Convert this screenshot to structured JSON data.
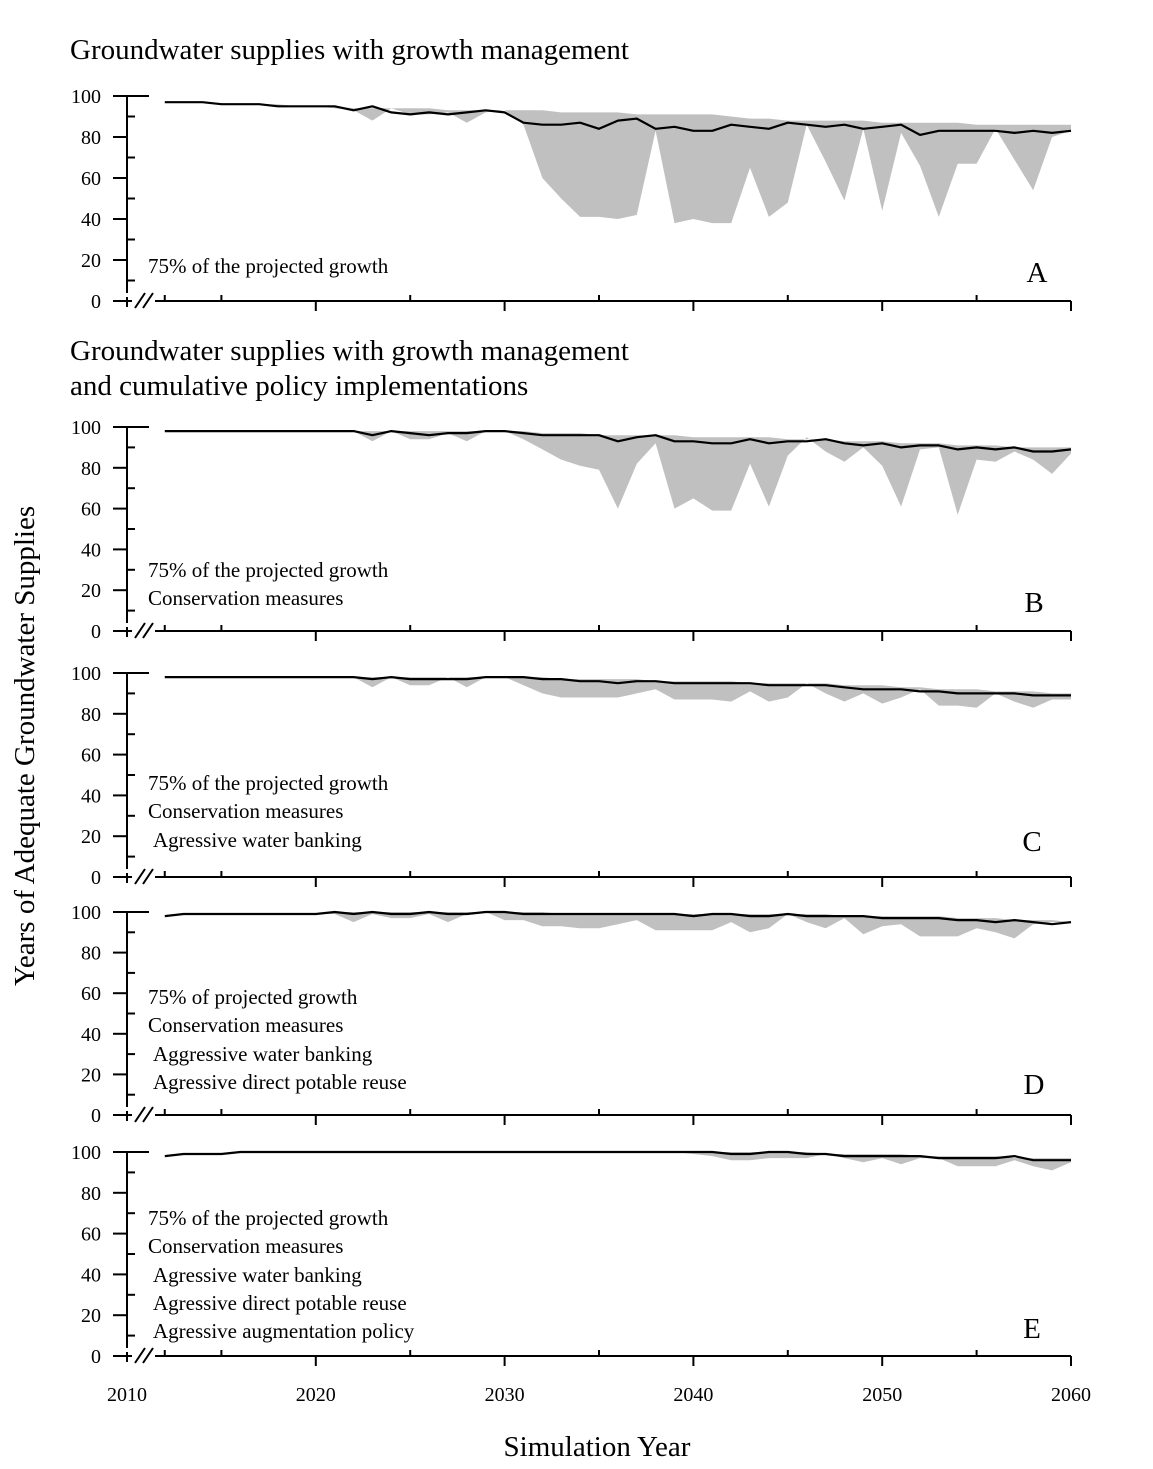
{
  "figure": {
    "ylabel": "Years of Adequate Groundwater Supplies",
    "xlabel": "Simulation Year",
    "x_ticks": [
      "2010",
      "2020",
      "2030",
      "2040",
      "2050",
      "2060"
    ],
    "y_ticks": [
      "0",
      "20",
      "40",
      "60",
      "80",
      "100"
    ]
  },
  "colors": {
    "range_fill": "#c0c0c0",
    "line": "#000000"
  },
  "chart_data": [
    {
      "panel": "A",
      "type": "area",
      "title": [
        "Groundwater supplies with growth management"
      ],
      "notes": [
        "75% of the projected growth"
      ],
      "xlim": [
        2010,
        2060
      ],
      "ylim": [
        0,
        100
      ],
      "x": [
        2012,
        2013,
        2014,
        2015,
        2016,
        2017,
        2018,
        2019,
        2020,
        2021,
        2022,
        2023,
        2024,
        2025,
        2026,
        2027,
        2028,
        2029,
        2030,
        2031,
        2032,
        2033,
        2034,
        2035,
        2036,
        2037,
        2038,
        2039,
        2040,
        2041,
        2042,
        2043,
        2044,
        2045,
        2046,
        2047,
        2048,
        2049,
        2050,
        2051,
        2052,
        2053,
        2054,
        2055,
        2056,
        2057,
        2058,
        2059,
        2060
      ],
      "series": [
        {
          "name": "upper",
          "values": [
            97,
            97,
            97,
            96,
            96,
            96,
            96,
            95,
            95,
            95,
            94,
            94,
            94,
            94,
            94,
            93,
            93,
            93,
            93,
            93,
            93,
            92,
            92,
            92,
            92,
            91,
            91,
            91,
            91,
            91,
            90,
            89,
            89,
            88,
            88,
            88,
            88,
            88,
            87,
            87,
            87,
            87,
            87,
            86,
            86,
            86,
            86,
            86,
            86
          ]
        },
        {
          "name": "lower",
          "values": [
            97,
            97,
            97,
            96,
            96,
            96,
            95,
            95,
            95,
            94,
            93,
            88,
            94,
            91,
            91,
            92,
            87,
            92,
            93,
            86,
            60,
            50,
            41,
            41,
            40,
            42,
            83,
            38,
            40,
            38,
            38,
            65,
            41,
            48,
            86,
            68,
            49,
            84,
            44,
            82,
            66,
            41,
            67,
            67,
            84,
            69,
            54,
            80,
            83
          ]
        },
        {
          "name": "mean",
          "values": [
            97,
            97,
            97,
            96,
            96,
            96,
            95,
            95,
            95,
            95,
            93,
            95,
            92,
            91,
            92,
            91,
            92,
            93,
            92,
            87,
            86,
            86,
            87,
            84,
            88,
            89,
            84,
            85,
            83,
            83,
            86,
            85,
            84,
            87,
            86,
            85,
            86,
            84,
            85,
            86,
            81,
            83,
            83,
            83,
            83,
            82,
            83,
            82,
            83
          ]
        }
      ]
    },
    {
      "panel": "B",
      "type": "area",
      "title": [
        "Groundwater supplies with growth management",
        "and cumulative policy implementations"
      ],
      "notes": [
        "75% of the projected growth",
        "Conservation measures"
      ],
      "xlim": [
        2010,
        2060
      ],
      "ylim": [
        0,
        100
      ],
      "x": [
        2012,
        2013,
        2014,
        2015,
        2016,
        2017,
        2018,
        2019,
        2020,
        2021,
        2022,
        2023,
        2024,
        2025,
        2026,
        2027,
        2028,
        2029,
        2030,
        2031,
        2032,
        2033,
        2034,
        2035,
        2036,
        2037,
        2038,
        2039,
        2040,
        2041,
        2042,
        2043,
        2044,
        2045,
        2046,
        2047,
        2048,
        2049,
        2050,
        2051,
        2052,
        2053,
        2054,
        2055,
        2056,
        2057,
        2058,
        2059,
        2060
      ],
      "series": [
        {
          "name": "upper",
          "values": [
            98,
            98,
            98,
            98,
            98,
            98,
            98,
            98,
            98,
            98,
            98,
            98,
            98,
            98,
            98,
            98,
            98,
            98,
            98,
            98,
            97,
            97,
            97,
            96,
            96,
            96,
            96,
            96,
            95,
            95,
            95,
            95,
            95,
            94,
            94,
            94,
            93,
            93,
            93,
            92,
            92,
            92,
            91,
            91,
            91,
            90,
            90,
            90,
            90
          ]
        },
        {
          "name": "lower",
          "values": [
            98,
            98,
            98,
            98,
            98,
            98,
            98,
            98,
            98,
            98,
            98,
            93,
            98,
            94,
            94,
            97,
            93,
            98,
            98,
            94,
            89,
            84,
            81,
            79,
            60,
            82,
            92,
            60,
            65,
            59,
            59,
            82,
            61,
            86,
            95,
            88,
            83,
            90,
            81,
            61,
            89,
            90,
            57,
            84,
            83,
            88,
            84,
            77,
            87
          ]
        },
        {
          "name": "mean",
          "values": [
            98,
            98,
            98,
            98,
            98,
            98,
            98,
            98,
            98,
            98,
            98,
            96,
            98,
            97,
            96,
            97,
            97,
            98,
            98,
            97,
            96,
            96,
            96,
            96,
            93,
            95,
            96,
            93,
            93,
            92,
            92,
            94,
            92,
            93,
            93,
            94,
            92,
            91,
            92,
            90,
            91,
            91,
            89,
            90,
            89,
            90,
            88,
            88,
            89
          ]
        }
      ]
    },
    {
      "panel": "C",
      "type": "area",
      "title": [],
      "notes": [
        "75% of the projected growth",
        "Conservation measures",
        "Agressive water banking"
      ],
      "xlim": [
        2010,
        2060
      ],
      "ylim": [
        0,
        100
      ],
      "x": [
        2012,
        2013,
        2014,
        2015,
        2016,
        2017,
        2018,
        2019,
        2020,
        2021,
        2022,
        2023,
        2024,
        2025,
        2026,
        2027,
        2028,
        2029,
        2030,
        2031,
        2032,
        2033,
        2034,
        2035,
        2036,
        2037,
        2038,
        2039,
        2040,
        2041,
        2042,
        2043,
        2044,
        2045,
        2046,
        2047,
        2048,
        2049,
        2050,
        2051,
        2052,
        2053,
        2054,
        2055,
        2056,
        2057,
        2058,
        2059,
        2060
      ],
      "series": [
        {
          "name": "upper",
          "values": [
            98,
            98,
            98,
            98,
            98,
            98,
            98,
            98,
            98,
            98,
            98,
            98,
            98,
            98,
            98,
            98,
            98,
            98,
            98,
            98,
            98,
            97,
            97,
            97,
            97,
            97,
            96,
            96,
            96,
            96,
            96,
            95,
            95,
            95,
            95,
            95,
            94,
            94,
            94,
            93,
            93,
            92,
            92,
            92,
            91,
            91,
            91,
            90,
            90
          ]
        },
        {
          "name": "lower",
          "values": [
            98,
            98,
            98,
            98,
            98,
            98,
            98,
            98,
            98,
            98,
            98,
            93,
            98,
            94,
            94,
            98,
            93,
            98,
            98,
            94,
            90,
            88,
            88,
            88,
            88,
            90,
            92,
            87,
            87,
            87,
            86,
            91,
            86,
            88,
            95,
            90,
            86,
            90,
            85,
            88,
            92,
            84,
            84,
            83,
            90,
            86,
            83,
            87,
            87
          ]
        },
        {
          "name": "mean",
          "values": [
            98,
            98,
            98,
            98,
            98,
            98,
            98,
            98,
            98,
            98,
            98,
            97,
            98,
            97,
            97,
            97,
            97,
            98,
            98,
            98,
            97,
            97,
            96,
            96,
            95,
            96,
            96,
            95,
            95,
            95,
            95,
            95,
            94,
            94,
            94,
            94,
            93,
            92,
            92,
            92,
            91,
            91,
            90,
            90,
            90,
            90,
            89,
            89,
            89
          ]
        }
      ]
    },
    {
      "panel": "D",
      "type": "area",
      "title": [],
      "notes": [
        "75% of projected growth",
        "Conservation measures",
        "Aggressive water banking",
        "Agressive direct potable reuse"
      ],
      "xlim": [
        2010,
        2060
      ],
      "ylim": [
        0,
        100
      ],
      "x": [
        2012,
        2013,
        2014,
        2015,
        2016,
        2017,
        2018,
        2019,
        2020,
        2021,
        2022,
        2023,
        2024,
        2025,
        2026,
        2027,
        2028,
        2029,
        2030,
        2031,
        2032,
        2033,
        2034,
        2035,
        2036,
        2037,
        2038,
        2039,
        2040,
        2041,
        2042,
        2043,
        2044,
        2045,
        2046,
        2047,
        2048,
        2049,
        2050,
        2051,
        2052,
        2053,
        2054,
        2055,
        2056,
        2057,
        2058,
        2059,
        2060
      ],
      "series": [
        {
          "name": "upper",
          "values": [
            98,
            99,
            99,
            99,
            99,
            99,
            99,
            99,
            99,
            100,
            100,
            100,
            100,
            100,
            100,
            100,
            100,
            100,
            100,
            100,
            100,
            99,
            99,
            99,
            99,
            99,
            99,
            99,
            99,
            99,
            99,
            99,
            99,
            99,
            99,
            99,
            98,
            98,
            98,
            98,
            98,
            98,
            97,
            97,
            97,
            96,
            96,
            96,
            95
          ]
        },
        {
          "name": "lower",
          "values": [
            98,
            99,
            99,
            99,
            99,
            99,
            99,
            99,
            99,
            99,
            95,
            99,
            97,
            97,
            99,
            95,
            99,
            100,
            96,
            96,
            93,
            93,
            92,
            92,
            94,
            96,
            91,
            91,
            91,
            91,
            95,
            90,
            92,
            99,
            95,
            92,
            97,
            89,
            93,
            94,
            88,
            88,
            88,
            92,
            90,
            87,
            94,
            95,
            95
          ]
        },
        {
          "name": "mean",
          "values": [
            98,
            99,
            99,
            99,
            99,
            99,
            99,
            99,
            99,
            100,
            99,
            100,
            99,
            99,
            100,
            99,
            99,
            100,
            100,
            99,
            99,
            99,
            99,
            99,
            99,
            99,
            99,
            99,
            98,
            99,
            99,
            98,
            98,
            99,
            98,
            98,
            98,
            98,
            97,
            97,
            97,
            97,
            96,
            96,
            95,
            96,
            95,
            94,
            95
          ]
        }
      ]
    },
    {
      "panel": "E",
      "type": "area",
      "title": [],
      "notes": [
        "75% of the projected growth",
        "Conservation measures",
        "Agressive water banking",
        "Agressive direct potable reuse",
        "Agressive augmentation policy"
      ],
      "xlim": [
        2010,
        2060
      ],
      "ylim": [
        0,
        100
      ],
      "x": [
        2012,
        2013,
        2014,
        2015,
        2016,
        2017,
        2018,
        2019,
        2020,
        2021,
        2022,
        2023,
        2024,
        2025,
        2026,
        2027,
        2028,
        2029,
        2030,
        2031,
        2032,
        2033,
        2034,
        2035,
        2036,
        2037,
        2038,
        2039,
        2040,
        2041,
        2042,
        2043,
        2044,
        2045,
        2046,
        2047,
        2048,
        2049,
        2050,
        2051,
        2052,
        2053,
        2054,
        2055,
        2056,
        2057,
        2058,
        2059,
        2060
      ],
      "series": [
        {
          "name": "upper",
          "values": [
            98,
            99,
            99,
            99,
            100,
            100,
            100,
            100,
            100,
            100,
            100,
            100,
            100,
            100,
            100,
            100,
            100,
            100,
            100,
            100,
            100,
            100,
            100,
            100,
            100,
            100,
            100,
            100,
            100,
            100,
            100,
            100,
            100,
            100,
            100,
            99,
            99,
            99,
            99,
            99,
            98,
            98,
            98,
            98,
            98,
            97,
            97,
            97,
            97
          ]
        },
        {
          "name": "lower",
          "values": [
            98,
            99,
            99,
            99,
            100,
            100,
            100,
            100,
            100,
            100,
            100,
            100,
            100,
            100,
            100,
            100,
            100,
            100,
            100,
            100,
            100,
            100,
            100,
            100,
            100,
            100,
            100,
            100,
            99,
            98,
            96,
            96,
            97,
            97,
            97,
            99,
            97,
            95,
            97,
            94,
            97,
            97,
            93,
            93,
            93,
            96,
            93,
            91,
            95
          ]
        },
        {
          "name": "mean",
          "values": [
            98,
            99,
            99,
            99,
            100,
            100,
            100,
            100,
            100,
            100,
            100,
            100,
            100,
            100,
            100,
            100,
            100,
            100,
            100,
            100,
            100,
            100,
            100,
            100,
            100,
            100,
            100,
            100,
            100,
            100,
            99,
            99,
            100,
            100,
            99,
            99,
            98,
            98,
            98,
            98,
            98,
            97,
            97,
            97,
            97,
            98,
            96,
            96,
            96
          ]
        }
      ]
    }
  ]
}
